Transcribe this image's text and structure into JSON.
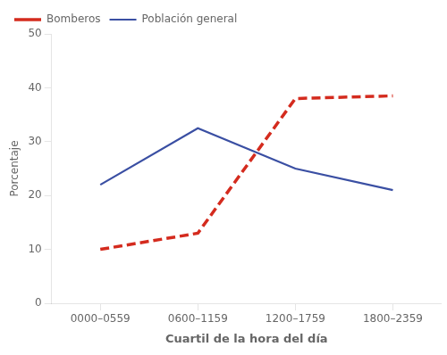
{
  "chart_data": {
    "type": "line",
    "xlabel": "Cuartil de la hora del día",
    "ylabel": "Porcentaje",
    "categories": [
      "0000–0559",
      "0600–1159",
      "1200–1759",
      "1800–2359"
    ],
    "series": [
      {
        "name": "Bomberos",
        "color": "#d42b1e",
        "line_style": "dashed",
        "values": [
          10,
          13,
          38,
          38.5
        ]
      },
      {
        "name": "Población general",
        "color": "#3a4fa3",
        "line_style": "solid",
        "values": [
          22,
          32.5,
          25,
          21
        ]
      }
    ],
    "ylim": [
      0,
      50
    ],
    "yticks": [
      0,
      10,
      20,
      30,
      40,
      50
    ],
    "grid": false,
    "legend": "upper left"
  }
}
